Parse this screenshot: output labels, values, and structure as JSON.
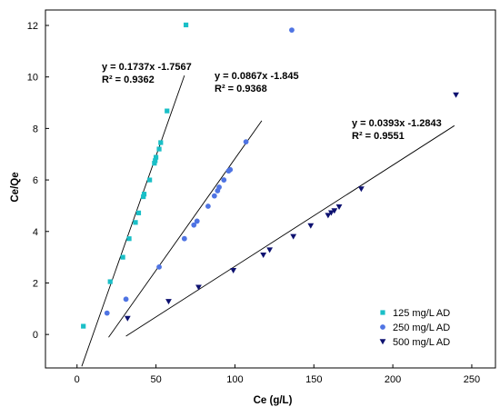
{
  "chart_data": {
    "type": "scatter",
    "xlabel": "Ce (g/L)",
    "ylabel": "Ce/Qe",
    "xlim": [
      -20,
      265
    ],
    "ylim": [
      -1.3,
      12.6
    ],
    "xticks": [
      0,
      50,
      100,
      150,
      200,
      250
    ],
    "yticks": [
      0,
      2,
      4,
      6,
      8,
      10,
      12
    ],
    "grid": false,
    "legend_position": "bottom-right",
    "series": [
      {
        "name": "125 mg/L AD",
        "color": "#1ABFC7",
        "marker": "square",
        "points": [
          [
            4,
            0.32
          ],
          [
            21,
            2.05
          ],
          [
            29,
            3.0
          ],
          [
            33,
            3.72
          ],
          [
            37,
            4.35
          ],
          [
            39,
            4.72
          ],
          [
            42,
            5.35
          ],
          [
            42.5,
            5.45
          ],
          [
            46,
            6.0
          ],
          [
            49,
            6.65
          ],
          [
            49.5,
            6.75
          ],
          [
            50,
            6.88
          ],
          [
            52,
            7.2
          ],
          [
            53,
            7.45
          ],
          [
            57,
            8.68
          ],
          [
            69,
            12.02
          ]
        ],
        "fit": {
          "equation": "y = 0.1737x -1.7567",
          "r2": "R² = 0.9362",
          "slope": 0.1737,
          "intercept": -1.7567,
          "x_range": [
            3,
            68
          ]
        }
      },
      {
        "name": "250 mg/L AD",
        "color": "#4F74E3",
        "marker": "circle",
        "points": [
          [
            19,
            0.83
          ],
          [
            31,
            1.37
          ],
          [
            52,
            2.62
          ],
          [
            68,
            3.72
          ],
          [
            74,
            4.25
          ],
          [
            76,
            4.4
          ],
          [
            83,
            4.98
          ],
          [
            87,
            5.38
          ],
          [
            89,
            5.58
          ],
          [
            90,
            5.72
          ],
          [
            93,
            6.0
          ],
          [
            96,
            6.35
          ],
          [
            97,
            6.4
          ],
          [
            107,
            7.48
          ],
          [
            136,
            11.82
          ]
        ],
        "fit": {
          "equation": "y = 0.0867x -1.845",
          "r2": "R² = 0.9368",
          "slope": 0.0867,
          "intercept": -1.845,
          "x_range": [
            20,
            117
          ]
        }
      },
      {
        "name": "500 mg/L AD",
        "color": "#0D1170",
        "marker": "triangle-down",
        "points": [
          [
            32,
            0.62
          ],
          [
            58,
            1.28
          ],
          [
            77,
            1.83
          ],
          [
            99,
            2.48
          ],
          [
            118,
            3.08
          ],
          [
            122,
            3.28
          ],
          [
            137,
            3.8
          ],
          [
            148,
            4.22
          ],
          [
            159,
            4.62
          ],
          [
            161,
            4.72
          ],
          [
            163,
            4.8
          ],
          [
            166,
            4.95
          ],
          [
            180,
            5.65
          ],
          [
            240,
            9.3
          ]
        ],
        "fit": {
          "equation": "y = 0.0393x -1.2843",
          "r2": "R² = 0.9551",
          "slope": 0.0393,
          "intercept": -1.2843,
          "x_range": [
            31,
            239
          ]
        }
      }
    ]
  }
}
